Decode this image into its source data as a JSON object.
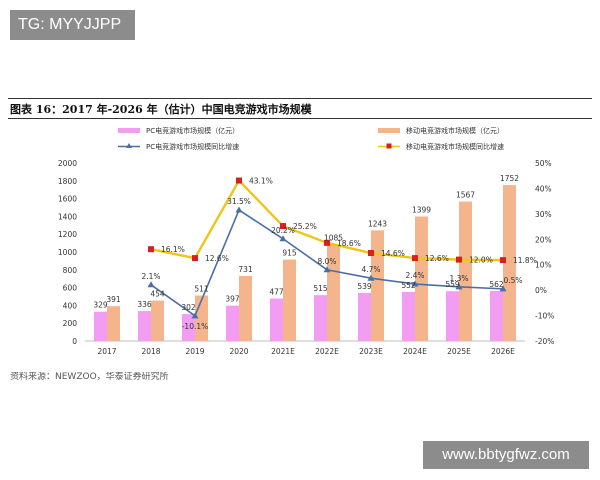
{
  "watermark": {
    "top_left": "TG: MYYJJPP",
    "bottom_right": "www.bbtygfwz.com"
  },
  "figure": {
    "title": "图表 16：2017 年-2026 年（估计）中国电竞游戏市场规模",
    "source": "资料来源：NEWZOO，华泰证券研究所"
  },
  "chart_data": {
    "type": "bar",
    "categories": [
      "2017",
      "2018",
      "2019",
      "2020",
      "2021E",
      "2022E",
      "2023E",
      "2024E",
      "2025E",
      "2026E"
    ],
    "series": [
      {
        "name": "PC电竞游戏市场规模（亿元）",
        "kind": "bar",
        "axis": "left",
        "color": "#f29cf2",
        "values": [
          329,
          336,
          302,
          397,
          477,
          515,
          539,
          552,
          559,
          562
        ],
        "labels": [
          "329",
          "336",
          "302",
          "397",
          "477",
          "515",
          "539",
          "552",
          "559",
          "562"
        ]
      },
      {
        "name": "移动电竞游戏市场规模（亿元）",
        "kind": "bar",
        "axis": "left",
        "color": "#f4b58c",
        "values": [
          391,
          454,
          511,
          731,
          915,
          1085,
          1243,
          1399,
          1567,
          1752
        ],
        "labels": [
          "391",
          "454",
          "511",
          "731",
          "915",
          "1085",
          "1243",
          "1399",
          "1567",
          "1752"
        ]
      },
      {
        "name": "PC电竞游戏市场规模同比增速",
        "kind": "line",
        "axis": "right",
        "color": "#4a6fa5",
        "values": [
          null,
          2.1,
          -10.1,
          31.5,
          20.2,
          8.0,
          4.7,
          2.4,
          1.3,
          0.5
        ],
        "labels": [
          "",
          "2.1%",
          "-10.1%",
          "31.5%",
          "20.2%",
          "8.0%",
          "4.7%",
          "2.4%",
          "1.3%",
          "0.5%"
        ]
      },
      {
        "name": "移动电竞游戏市场规模同比增速",
        "kind": "line",
        "axis": "right",
        "color": "#f0c419",
        "marker_color": "#d62020",
        "values": [
          null,
          16.1,
          12.6,
          43.1,
          25.2,
          18.6,
          14.6,
          12.6,
          12.0,
          11.8
        ],
        "labels": [
          "",
          "16.1%",
          "12.6%",
          "43.1%",
          "25.2%",
          "18.6%",
          "14.6%",
          "12.6%",
          "12.0%",
          "11.8%"
        ]
      }
    ],
    "ylim_left": [
      0,
      2000
    ],
    "ylim_right": [
      -20,
      50
    ],
    "y_ticks_left": [
      "0",
      "200",
      "400",
      "600",
      "800",
      "1000",
      "1200",
      "1400",
      "1600",
      "1800",
      "2000"
    ],
    "y_ticks_right": [
      "-20%",
      "-10%",
      "0%",
      "10%",
      "20%",
      "30%",
      "40%",
      "50%"
    ],
    "legend_position": "top",
    "grid": false
  }
}
